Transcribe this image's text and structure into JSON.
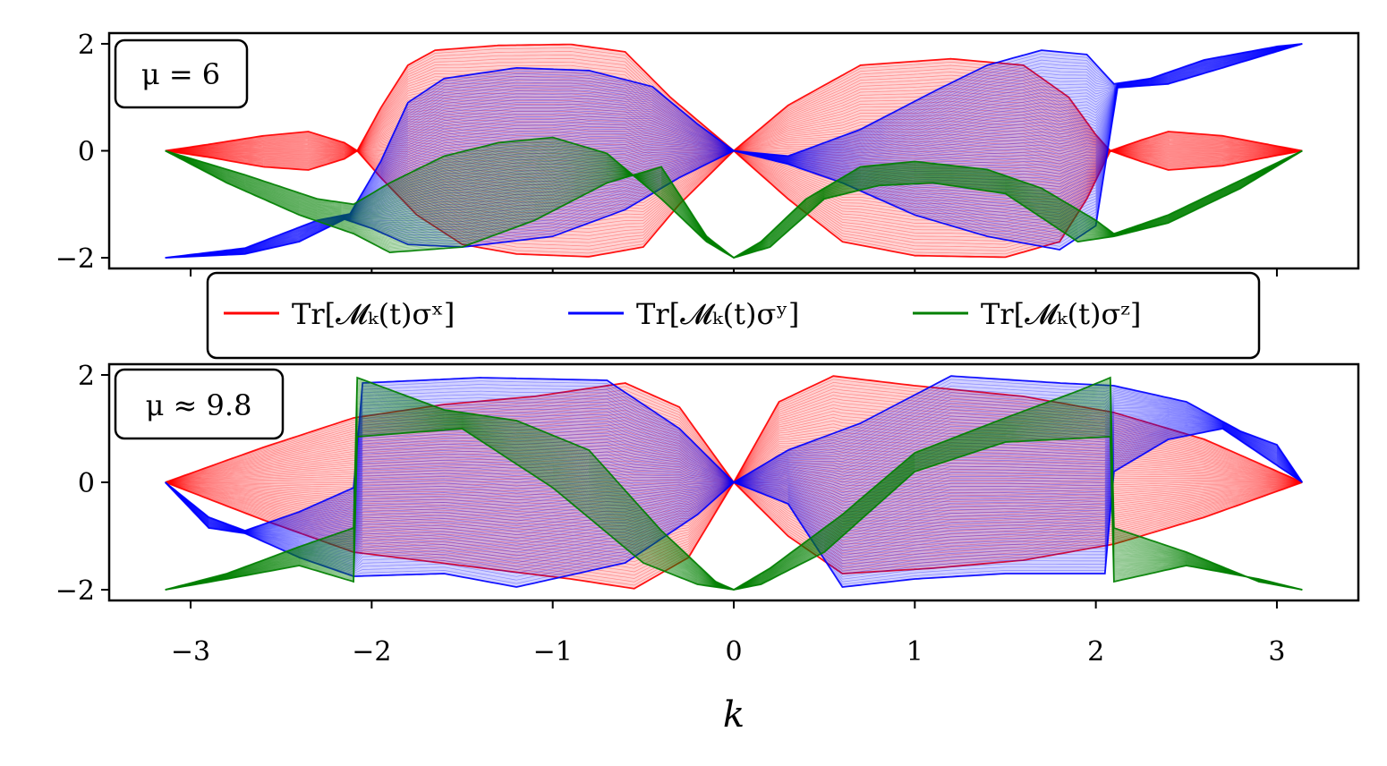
{
  "legend": [
    {
      "name": "Tr[𝓜ₖ(t)σˣ]",
      "color": "#ff0000"
    },
    {
      "name": "Tr[𝓜ₖ(t)σʸ]",
      "color": "#0000ff"
    },
    {
      "name": "Tr[𝓜ₖ(t)σᶻ]",
      "color": "#008000"
    }
  ],
  "chart_data": [
    {
      "type": "line",
      "annotation": "μ = 6",
      "xlabel": "",
      "xlim": [
        -3.45,
        3.45
      ],
      "ylim": [
        -2.2,
        2.2
      ],
      "xticks": [
        -3,
        -2,
        -1,
        0,
        1,
        2,
        3
      ],
      "yticks": [
        {
          "v": -2,
          "label": "−2"
        },
        {
          "v": 0,
          "label": "0"
        },
        {
          "v": 2,
          "label": "2"
        }
      ],
      "series": [
        {
          "color": "#ff0000",
          "upper": [
            [
              -3.14,
              0
            ],
            [
              -2.9,
              0.12
            ],
            [
              -2.6,
              0.28
            ],
            [
              -2.35,
              0.36
            ],
            [
              -2.15,
              0.15
            ],
            [
              -2.08,
              0
            ],
            [
              -1.95,
              0.8
            ],
            [
              -1.8,
              1.6
            ],
            [
              -1.65,
              1.88
            ],
            [
              -1.3,
              1.97
            ],
            [
              -0.9,
              1.99
            ],
            [
              -0.6,
              1.85
            ],
            [
              -0.35,
              1.0
            ],
            [
              0,
              0
            ],
            [
              0.3,
              0.85
            ],
            [
              0.7,
              1.6
            ],
            [
              1.2,
              1.72
            ],
            [
              1.6,
              1.6
            ],
            [
              1.85,
              1.0
            ],
            [
              2.0,
              0.3
            ],
            [
              2.08,
              0
            ],
            [
              2.25,
              0.2
            ],
            [
              2.4,
              0.36
            ],
            [
              2.7,
              0.28
            ],
            [
              2.95,
              0.12
            ],
            [
              3.14,
              0
            ]
          ],
          "lower": [
            [
              -3.14,
              0
            ],
            [
              -2.9,
              -0.12
            ],
            [
              -2.6,
              -0.3
            ],
            [
              -2.35,
              -0.36
            ],
            [
              -2.15,
              -0.15
            ],
            [
              -2.08,
              0
            ],
            [
              -1.95,
              -0.5
            ],
            [
              -1.75,
              -1.2
            ],
            [
              -1.5,
              -1.75
            ],
            [
              -1.2,
              -1.93
            ],
            [
              -0.8,
              -1.98
            ],
            [
              -0.5,
              -1.8
            ],
            [
              -0.3,
              -1.0
            ],
            [
              0,
              0
            ],
            [
              0.3,
              -0.9
            ],
            [
              0.6,
              -1.7
            ],
            [
              1.0,
              -1.96
            ],
            [
              1.5,
              -1.99
            ],
            [
              1.8,
              -1.7
            ],
            [
              1.95,
              -0.9
            ],
            [
              2.08,
              0
            ],
            [
              2.25,
              -0.2
            ],
            [
              2.4,
              -0.36
            ],
            [
              2.7,
              -0.28
            ],
            [
              2.95,
              -0.12
            ],
            [
              3.14,
              0
            ]
          ]
        },
        {
          "color": "#0000ff",
          "upper": [
            [
              -3.14,
              -2
            ],
            [
              -2.7,
              -1.82
            ],
            [
              -2.3,
              -1.3
            ],
            [
              -2.12,
              -1.18
            ],
            [
              -1.95,
              -0.2
            ],
            [
              -1.8,
              0.9
            ],
            [
              -1.6,
              1.35
            ],
            [
              -1.2,
              1.55
            ],
            [
              -0.8,
              1.5
            ],
            [
              -0.45,
              1.2
            ],
            [
              -0.2,
              0.5
            ],
            [
              0,
              0
            ],
            [
              0.3,
              -0.1
            ],
            [
              0.7,
              0.4
            ],
            [
              1.1,
              1.1
            ],
            [
              1.4,
              1.6
            ],
            [
              1.7,
              1.88
            ],
            [
              1.95,
              1.8
            ],
            [
              2.1,
              1.25
            ],
            [
              2.3,
              1.35
            ],
            [
              2.6,
              1.7
            ],
            [
              3.0,
              1.95
            ],
            [
              3.14,
              2
            ]
          ],
          "lower": [
            [
              -3.14,
              -2
            ],
            [
              -2.7,
              -1.93
            ],
            [
              -2.4,
              -1.7
            ],
            [
              -2.15,
              -1.28
            ],
            [
              -2.0,
              -1.45
            ],
            [
              -1.8,
              -1.75
            ],
            [
              -1.5,
              -1.8
            ],
            [
              -1.0,
              -1.6
            ],
            [
              -0.6,
              -1.1
            ],
            [
              -0.3,
              -0.5
            ],
            [
              0,
              0
            ],
            [
              0.3,
              -0.25
            ],
            [
              0.6,
              -0.6
            ],
            [
              1.0,
              -1.2
            ],
            [
              1.4,
              -1.6
            ],
            [
              1.8,
              -1.85
            ],
            [
              2.0,
              -1.4
            ],
            [
              2.12,
              1.18
            ],
            [
              2.4,
              1.25
            ],
            [
              2.7,
              1.55
            ],
            [
              3.14,
              2
            ]
          ]
        },
        {
          "color": "#008000",
          "upper": [
            [
              -3.14,
              0
            ],
            [
              -2.7,
              -0.45
            ],
            [
              -2.3,
              -0.9
            ],
            [
              -2.1,
              -1.0
            ],
            [
              -1.9,
              -0.6
            ],
            [
              -1.6,
              -0.1
            ],
            [
              -1.3,
              0.15
            ],
            [
              -1.0,
              0.25
            ],
            [
              -0.7,
              -0.05
            ],
            [
              -0.4,
              -0.9
            ],
            [
              -0.15,
              -1.7
            ],
            [
              0,
              -2
            ],
            [
              0.15,
              -1.7
            ],
            [
              0.4,
              -0.9
            ],
            [
              0.7,
              -0.3
            ],
            [
              1.0,
              -0.2
            ],
            [
              1.4,
              -0.35
            ],
            [
              1.7,
              -0.7
            ],
            [
              2.0,
              -1.3
            ],
            [
              2.1,
              -1.55
            ],
            [
              2.4,
              -1.2
            ],
            [
              2.8,
              -0.55
            ],
            [
              3.14,
              0
            ]
          ],
          "lower": [
            [
              -3.14,
              0
            ],
            [
              -2.8,
              -0.6
            ],
            [
              -2.4,
              -1.2
            ],
            [
              -2.1,
              -1.55
            ],
            [
              -1.9,
              -1.9
            ],
            [
              -1.5,
              -1.8
            ],
            [
              -1.1,
              -1.3
            ],
            [
              -0.7,
              -0.6
            ],
            [
              -0.4,
              -0.3
            ],
            [
              -0.15,
              -1.6
            ],
            [
              0,
              -2
            ],
            [
              0.2,
              -1.8
            ],
            [
              0.5,
              -0.9
            ],
            [
              0.8,
              -0.65
            ],
            [
              1.1,
              -0.6
            ],
            [
              1.5,
              -0.8
            ],
            [
              1.9,
              -1.7
            ],
            [
              2.1,
              -1.6
            ],
            [
              2.4,
              -1.35
            ],
            [
              2.8,
              -0.7
            ],
            [
              3.14,
              0
            ]
          ]
        }
      ]
    },
    {
      "type": "line",
      "annotation": "μ ≈ 9.8",
      "xlabel": "k",
      "xlim": [
        -3.45,
        3.45
      ],
      "ylim": [
        -2.2,
        2.2
      ],
      "xticks": [
        -3,
        -2,
        -1,
        0,
        1,
        2,
        3
      ],
      "yticks": [
        {
          "v": -2,
          "label": "−2"
        },
        {
          "v": 0,
          "label": "0"
        },
        {
          "v": 2,
          "label": "2"
        }
      ],
      "series": [
        {
          "color": "#ff0000",
          "upper": [
            [
              -3.14,
              0
            ],
            [
              -2.6,
              0.65
            ],
            [
              -2.1,
              1.2
            ],
            [
              -1.6,
              1.45
            ],
            [
              -1.1,
              1.6
            ],
            [
              -0.6,
              1.85
            ],
            [
              -0.3,
              1.4
            ],
            [
              0,
              0
            ],
            [
              0.25,
              1.5
            ],
            [
              0.55,
              1.98
            ],
            [
              1.0,
              1.8
            ],
            [
              1.6,
              1.6
            ],
            [
              2.1,
              1.3
            ],
            [
              2.6,
              0.8
            ],
            [
              3.14,
              0
            ]
          ],
          "lower": [
            [
              -3.14,
              0
            ],
            [
              -2.6,
              -0.7
            ],
            [
              -2.1,
              -1.3
            ],
            [
              -1.5,
              -1.55
            ],
            [
              -0.9,
              -1.8
            ],
            [
              -0.55,
              -1.98
            ],
            [
              -0.25,
              -1.4
            ],
            [
              0,
              0
            ],
            [
              0.3,
              -1.0
            ],
            [
              0.6,
              -1.7
            ],
            [
              1.1,
              -1.6
            ],
            [
              1.6,
              -1.45
            ],
            [
              2.1,
              -1.15
            ],
            [
              2.6,
              -0.65
            ],
            [
              3.14,
              0
            ]
          ]
        },
        {
          "color": "#0000ff",
          "upper": [
            [
              -3.14,
              0
            ],
            [
              -2.9,
              -0.65
            ],
            [
              -2.7,
              -0.9
            ],
            [
              -2.4,
              -0.55
            ],
            [
              -2.1,
              -0.1
            ],
            [
              -2.05,
              1.85
            ],
            [
              -1.4,
              1.95
            ],
            [
              -0.7,
              1.9
            ],
            [
              -0.3,
              1.0
            ],
            [
              0,
              0
            ],
            [
              0.3,
              0.6
            ],
            [
              0.7,
              1.1
            ],
            [
              1.2,
              1.98
            ],
            [
              1.8,
              1.85
            ],
            [
              2.1,
              1.8
            ],
            [
              2.5,
              1.5
            ],
            [
              2.8,
              0.95
            ],
            [
              3.0,
              0.7
            ],
            [
              3.14,
              0
            ]
          ],
          "lower": [
            [
              -3.14,
              0
            ],
            [
              -2.9,
              -0.85
            ],
            [
              -2.7,
              -0.95
            ],
            [
              -2.4,
              -1.4
            ],
            [
              -2.1,
              -1.75
            ],
            [
              -1.6,
              -1.7
            ],
            [
              -1.2,
              -1.95
            ],
            [
              -0.6,
              -1.5
            ],
            [
              -0.2,
              -0.6
            ],
            [
              0,
              0
            ],
            [
              0.3,
              -0.4
            ],
            [
              0.6,
              -1.95
            ],
            [
              1.0,
              -1.8
            ],
            [
              1.5,
              -1.7
            ],
            [
              2.05,
              -1.7
            ],
            [
              2.1,
              0.2
            ],
            [
              2.4,
              0.8
            ],
            [
              2.7,
              1.0
            ],
            [
              3.14,
              0
            ]
          ]
        },
        {
          "color": "#008000",
          "upper": [
            [
              -3.14,
              -2
            ],
            [
              -2.8,
              -1.7
            ],
            [
              -2.4,
              -1.2
            ],
            [
              -2.1,
              -0.85
            ],
            [
              -2.08,
              1.95
            ],
            [
              -1.6,
              1.35
            ],
            [
              -1.2,
              1.15
            ],
            [
              -0.8,
              0.6
            ],
            [
              -0.4,
              -0.9
            ],
            [
              -0.1,
              -1.85
            ],
            [
              0,
              -2
            ],
            [
              0.2,
              -1.6
            ],
            [
              0.6,
              -0.6
            ],
            [
              1.0,
              0.55
            ],
            [
              1.5,
              1.2
            ],
            [
              1.9,
              1.7
            ],
            [
              2.08,
              1.95
            ],
            [
              2.1,
              -0.85
            ],
            [
              2.5,
              -1.3
            ],
            [
              2.9,
              -1.85
            ],
            [
              3.14,
              -2
            ]
          ],
          "lower": [
            [
              -3.14,
              -2
            ],
            [
              -2.8,
              -1.8
            ],
            [
              -2.4,
              -1.55
            ],
            [
              -2.1,
              -1.85
            ],
            [
              -2.08,
              0.85
            ],
            [
              -1.5,
              1.0
            ],
            [
              -1.0,
              -0.1
            ],
            [
              -0.5,
              -1.5
            ],
            [
              -0.2,
              -1.9
            ],
            [
              0,
              -2
            ],
            [
              0.15,
              -1.9
            ],
            [
              0.5,
              -1.3
            ],
            [
              1.0,
              0.2
            ],
            [
              1.5,
              0.75
            ],
            [
              2.08,
              0.85
            ],
            [
              2.1,
              -1.85
            ],
            [
              2.5,
              -1.55
            ],
            [
              2.9,
              -1.8
            ],
            [
              3.14,
              -2
            ]
          ]
        }
      ]
    }
  ]
}
